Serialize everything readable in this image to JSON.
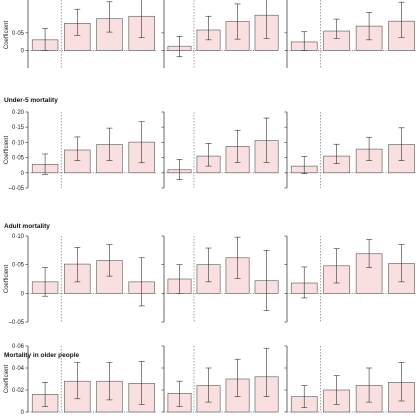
{
  "colors": {
    "bar_fill": "#f9dfdf",
    "bar_stroke": "#555555",
    "axis": "#444444",
    "ref_line": "#666666"
  },
  "chart_data": [
    {
      "type": "bar",
      "title": "",
      "ylabel": "Coefficient",
      "ylim": [
        -0.05,
        0.2
      ],
      "yticks": [
        "0",
        "0·05"
      ],
      "panels": [
        {
          "values": [
            0.03,
            0.077,
            0.09,
            0.097
          ],
          "ci_low": [
            0.0,
            0.043,
            0.052,
            0.036
          ],
          "ci_high": [
            0.062,
            0.117,
            0.138,
            0.158
          ]
        },
        {
          "values": [
            0.012,
            0.058,
            0.082,
            0.1
          ],
          "ci_low": [
            -0.018,
            0.03,
            0.032,
            0.034
          ],
          "ci_high": [
            0.04,
            0.097,
            0.132,
            0.165
          ]
        },
        {
          "values": [
            0.024,
            0.055,
            0.069,
            0.083
          ],
          "ci_low": [
            0.0,
            0.034,
            0.03,
            0.037
          ],
          "ci_high": [
            0.053,
            0.089,
            0.108,
            0.137
          ]
        }
      ]
    },
    {
      "type": "bar",
      "title": "Under-5 mortality",
      "ylabel": "Coefficient",
      "ylim": [
        -0.05,
        0.2
      ],
      "yticks": [
        "0·20",
        "0·15",
        "0·10",
        "0·05",
        "0",
        "–0·05"
      ],
      "panels": [
        {
          "values": [
            0.028,
            0.075,
            0.093,
            0.101
          ],
          "ci_low": [
            -0.005,
            0.04,
            0.04,
            0.033
          ],
          "ci_high": [
            0.062,
            0.118,
            0.147,
            0.168
          ]
        },
        {
          "values": [
            0.01,
            0.055,
            0.087,
            0.106
          ],
          "ci_low": [
            -0.022,
            0.022,
            0.034,
            0.034
          ],
          "ci_high": [
            0.044,
            0.097,
            0.14,
            0.18
          ]
        },
        {
          "values": [
            0.022,
            0.055,
            0.078,
            0.093
          ],
          "ci_low": [
            -0.003,
            0.03,
            0.04,
            0.04
          ],
          "ci_high": [
            0.054,
            0.094,
            0.117,
            0.148
          ]
        }
      ]
    },
    {
      "type": "bar",
      "title": "Adult mortality",
      "ylabel": "Coefficient",
      "ylim": [
        -0.05,
        0.1
      ],
      "yticks": [
        "0·10",
        "0·05",
        "0",
        "–0·05"
      ],
      "panels": [
        {
          "values": [
            0.02,
            0.051,
            0.057,
            0.02
          ],
          "ci_low": [
            -0.005,
            0.02,
            0.03,
            -0.022
          ],
          "ci_high": [
            0.045,
            0.08,
            0.085,
            0.062
          ]
        },
        {
          "values": [
            0.025,
            0.05,
            0.062,
            0.022
          ],
          "ci_low": [
            0.0,
            0.02,
            0.026,
            -0.03
          ],
          "ci_high": [
            0.05,
            0.079,
            0.098,
            0.075
          ]
        },
        {
          "values": [
            0.018,
            0.048,
            0.069,
            0.052
          ],
          "ci_low": [
            -0.008,
            0.018,
            0.045,
            0.02
          ],
          "ci_high": [
            0.046,
            0.078,
            0.094,
            0.085
          ]
        }
      ]
    },
    {
      "type": "bar",
      "title": "Mortality in older people",
      "ylabel": "Coefficient",
      "ylim": [
        0,
        0.06
      ],
      "yticks": [
        "0·06",
        "0·04",
        "0·02",
        "0"
      ],
      "panels": [
        {
          "values": [
            0.016,
            0.028,
            0.028,
            0.026
          ],
          "ci_low": [
            0.005,
            0.012,
            0.011,
            0.007
          ],
          "ci_high": [
            0.027,
            0.045,
            0.045,
            0.046
          ]
        },
        {
          "values": [
            0.017,
            0.024,
            0.03,
            0.032
          ],
          "ci_low": [
            0.005,
            0.009,
            0.014,
            0.014
          ],
          "ci_high": [
            0.028,
            0.04,
            0.048,
            0.058
          ]
        },
        {
          "values": [
            0.014,
            0.02,
            0.024,
            0.027
          ],
          "ci_low": [
            0.004,
            0.007,
            0.009,
            0.01
          ],
          "ci_high": [
            0.024,
            0.033,
            0.04,
            0.045
          ]
        }
      ]
    }
  ]
}
